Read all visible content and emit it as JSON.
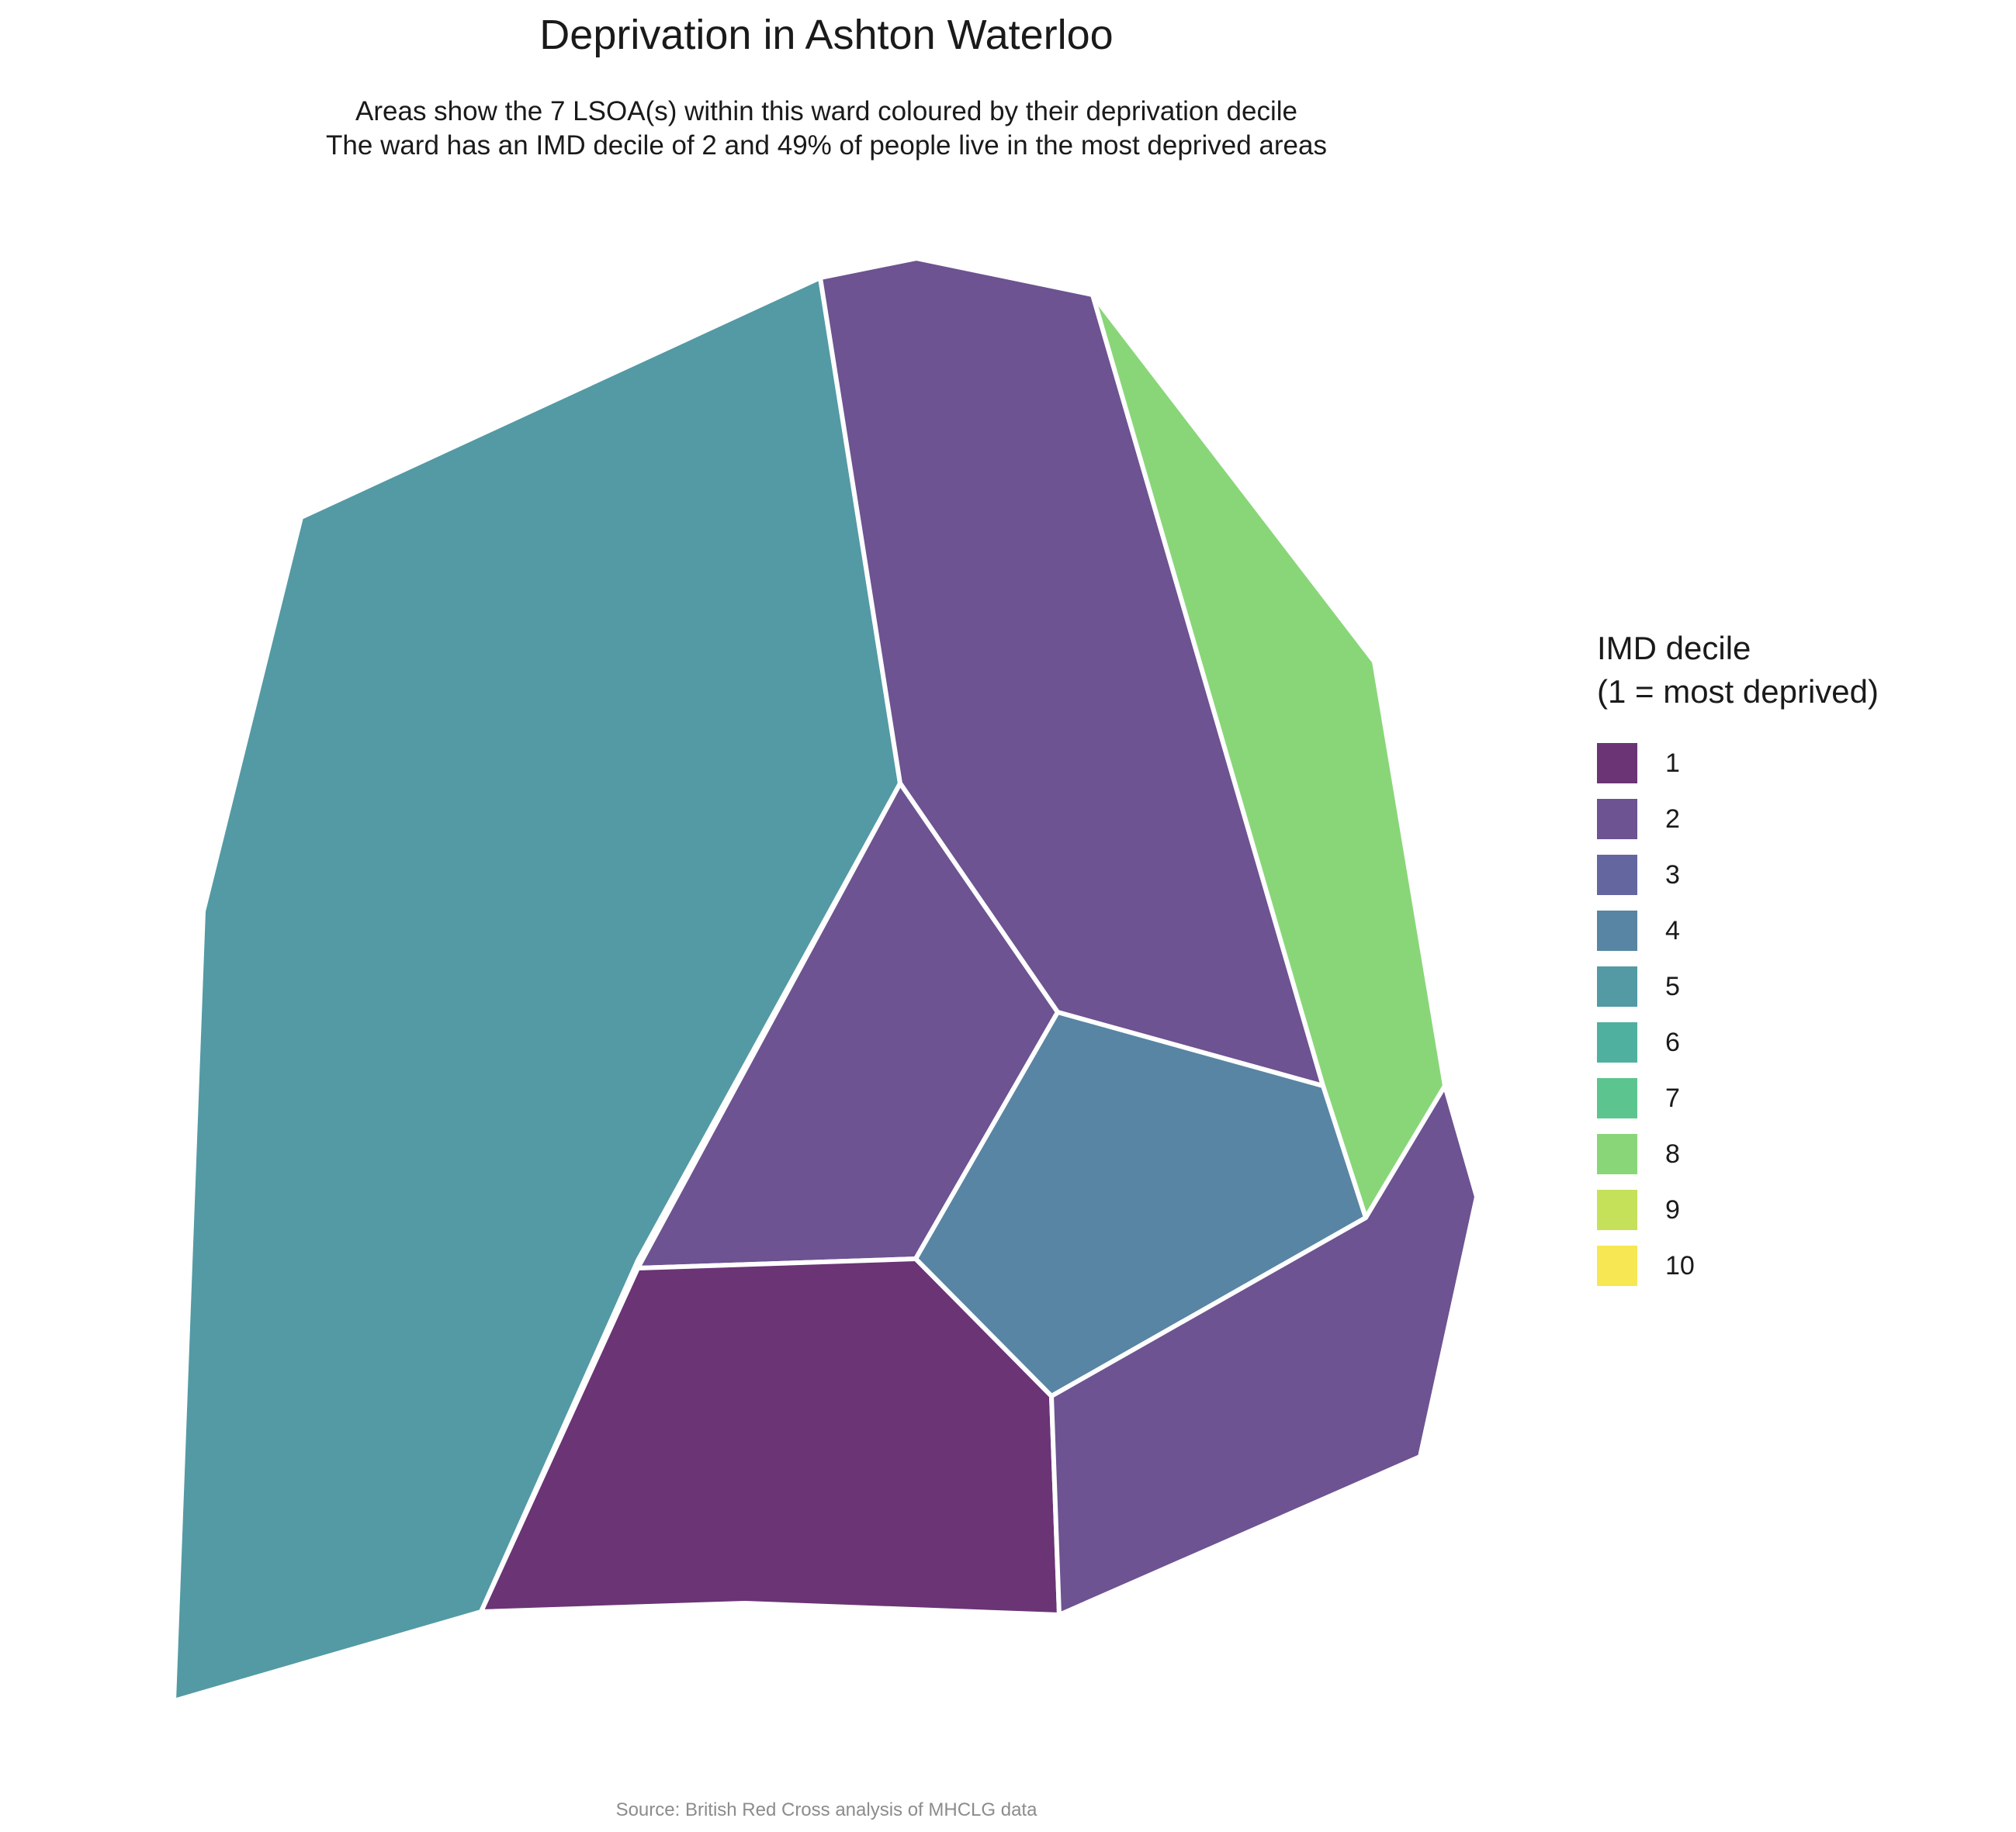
{
  "title": "Deprivation in Ashton Waterloo",
  "subtitle_line1": "Areas show the 7 LSOA(s) within this ward coloured by their deprivation decile",
  "subtitle_line2": "The ward has an IMD decile of 2 and 49% of people live in the most deprived areas",
  "legend": {
    "title_line1": "IMD decile",
    "title_line2": "(1 = most deprived)",
    "items": [
      {
        "label": "1",
        "color": "#6a3475"
      },
      {
        "label": "2",
        "color": "#6d5391"
      },
      {
        "label": "3",
        "color": "#64679f"
      },
      {
        "label": "4",
        "color": "#5885a3"
      },
      {
        "label": "5",
        "color": "#539aa4"
      },
      {
        "label": "6",
        "color": "#4fb0a0"
      },
      {
        "label": "7",
        "color": "#5cc58f"
      },
      {
        "label": "8",
        "color": "#89d679"
      },
      {
        "label": "9",
        "color": "#c5e15a"
      },
      {
        "label": "10",
        "color": "#f6e753"
      }
    ]
  },
  "areas": [
    {
      "name": "lsoa-west",
      "decile": 5,
      "color": "#539aa4"
    },
    {
      "name": "lsoa-north-centre",
      "decile": 2,
      "color": "#6d5391"
    },
    {
      "name": "lsoa-north-east",
      "decile": 8,
      "color": "#89d679"
    },
    {
      "name": "lsoa-centre",
      "decile": 2,
      "color": "#6d5391"
    },
    {
      "name": "lsoa-east-centre",
      "decile": 4,
      "color": "#5885a3"
    },
    {
      "name": "lsoa-south",
      "decile": 1,
      "color": "#6a3475"
    },
    {
      "name": "lsoa-south-east",
      "decile": 2,
      "color": "#6d5391"
    }
  ],
  "caption": "Source: British Red Cross analysis of MHCLG data"
}
